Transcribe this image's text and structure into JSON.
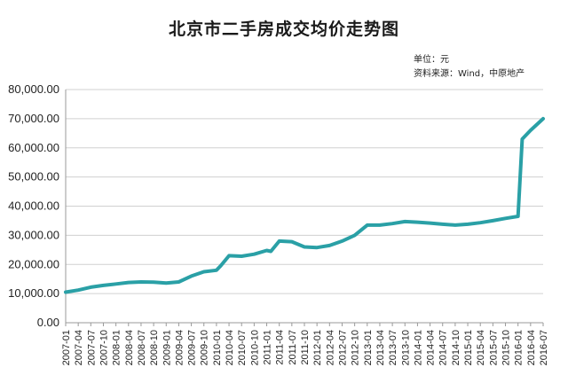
{
  "chart_data": {
    "type": "line",
    "title": "北京市二手房成交均价走势图",
    "unit_note": "单位：元",
    "source_note": "资料来源：Wind，中原地产",
    "xlabel": "",
    "ylabel": "",
    "ylim": [
      0,
      80000
    ],
    "yticks": [
      "0.00",
      "10,000.00",
      "20,000.00",
      "30,000.00",
      "40,000.00",
      "50,000.00",
      "60,000.00",
      "70,000.00",
      "80,000.00"
    ],
    "grid": true,
    "line_color": "#2aa0a6",
    "x_tick_labels": [
      "2007-01",
      "2007-04",
      "2007-07",
      "2007-10",
      "2008-01",
      "2008-04",
      "2008-07",
      "2008-10",
      "2009-01",
      "2009-04",
      "2009-07",
      "2009-10",
      "2010-01",
      "2010-04",
      "2010-07",
      "2010-10",
      "2011-01",
      "2011-04",
      "2011-07",
      "2011-10",
      "2012-01",
      "2012-04",
      "2012-07",
      "2012-10",
      "2013-01",
      "2013-04",
      "2013-07",
      "2013-10",
      "2014-01",
      "2014-04",
      "2014-07",
      "2014-10",
      "2015-01",
      "2015-04",
      "2015-07",
      "2015-10",
      "2016-01",
      "2016-04",
      "2016-07"
    ],
    "series": [
      {
        "x": [
          "2007-01",
          "2007-04",
          "2007-07",
          "2007-10",
          "2008-01",
          "2008-04",
          "2008-07",
          "2008-10",
          "2009-01",
          "2009-04",
          "2009-07",
          "2009-10",
          "2010-01",
          "2010-02",
          "2010-04",
          "2010-07",
          "2010-10",
          "2011-01",
          "2011-02",
          "2011-04",
          "2011-07",
          "2011-10",
          "2012-01",
          "2012-04",
          "2012-07",
          "2012-10",
          "2013-01",
          "2013-04",
          "2013-07",
          "2013-10",
          "2014-01",
          "2014-04",
          "2014-07",
          "2014-10",
          "2015-01",
          "2015-04",
          "2015-07",
          "2015-10",
          "2016-01",
          "2016-02",
          "2016-04",
          "2016-07"
        ],
        "values": [
          10500,
          11200,
          12200,
          12800,
          13300,
          13800,
          14000,
          13900,
          13600,
          14000,
          16000,
          17500,
          18000,
          19500,
          23000,
          22800,
          23500,
          24800,
          24500,
          28000,
          27800,
          26000,
          25800,
          26500,
          28000,
          30000,
          33500,
          33500,
          34000,
          34700,
          34500,
          34200,
          33800,
          33500,
          33800,
          34300,
          35000,
          35800,
          36500,
          63000,
          66000,
          70000
        ]
      }
    ]
  }
}
